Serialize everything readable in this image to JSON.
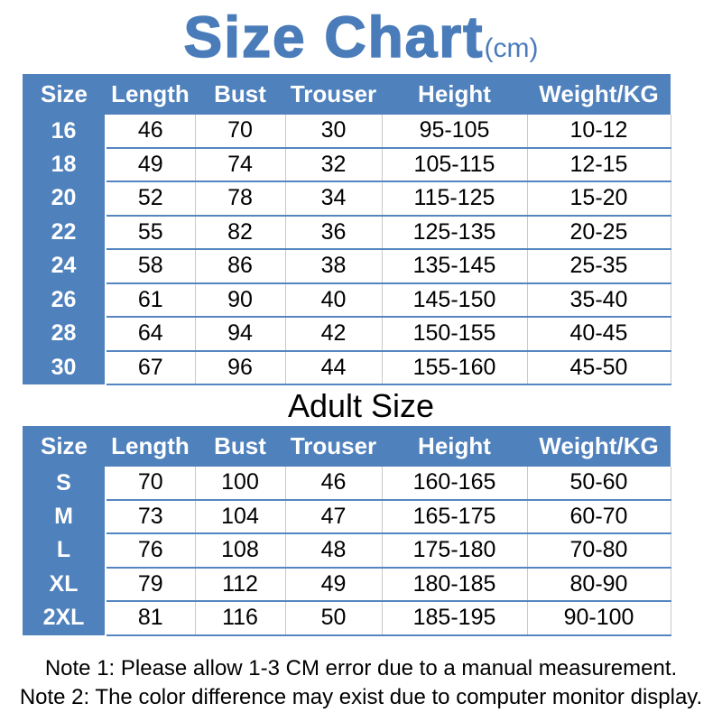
{
  "title": {
    "main": "Size Chart",
    "unit": "(cm)"
  },
  "adult_heading": "Adult Size",
  "columns": [
    "Size",
    "Length",
    "Bust",
    "Trouser",
    "Height",
    "Weight/KG"
  ],
  "chart_data": [
    {
      "type": "table",
      "name": "youth-size-table",
      "columns": [
        "Size",
        "Length",
        "Bust",
        "Trouser",
        "Height",
        "Weight/KG"
      ],
      "rows": [
        [
          "16",
          "46",
          "70",
          "30",
          "95-105",
          "10-12"
        ],
        [
          "18",
          "49",
          "74",
          "32",
          "105-115",
          "12-15"
        ],
        [
          "20",
          "52",
          "78",
          "34",
          "115-125",
          "15-20"
        ],
        [
          "22",
          "55",
          "82",
          "36",
          "125-135",
          "20-25"
        ],
        [
          "24",
          "58",
          "86",
          "38",
          "135-145",
          "25-35"
        ],
        [
          "26",
          "61",
          "90",
          "40",
          "145-150",
          "35-40"
        ],
        [
          "28",
          "64",
          "94",
          "42",
          "150-155",
          "40-45"
        ],
        [
          "30",
          "67",
          "96",
          "44",
          "155-160",
          "45-50"
        ]
      ]
    },
    {
      "type": "table",
      "name": "adult-size-table",
      "title": "Adult Size",
      "columns": [
        "Size",
        "Length",
        "Bust",
        "Trouser",
        "Height",
        "Weight/KG"
      ],
      "rows": [
        [
          "S",
          "70",
          "100",
          "46",
          "160-165",
          "50-60"
        ],
        [
          "M",
          "73",
          "104",
          "47",
          "165-175",
          "60-70"
        ],
        [
          "L",
          "76",
          "108",
          "48",
          "175-180",
          "70-80"
        ],
        [
          "XL",
          "79",
          "112",
          "49",
          "180-185",
          "80-90"
        ],
        [
          "2XL",
          "81",
          "116",
          "50",
          "185-195",
          "90-100"
        ]
      ]
    }
  ],
  "notes": [
    "Note 1: Please allow 1-3 CM error due to a manual measurement.",
    "Note 2: The color difference may exist due to computer monitor display."
  ],
  "colors": {
    "table_blue": "#4f81bd",
    "title_blue": "#4a7cba",
    "row_line_blue": "#5585c1",
    "cell_line_gray": "#c9c9c9",
    "text_black": "#000000",
    "header_text_white": "#ffffff"
  }
}
